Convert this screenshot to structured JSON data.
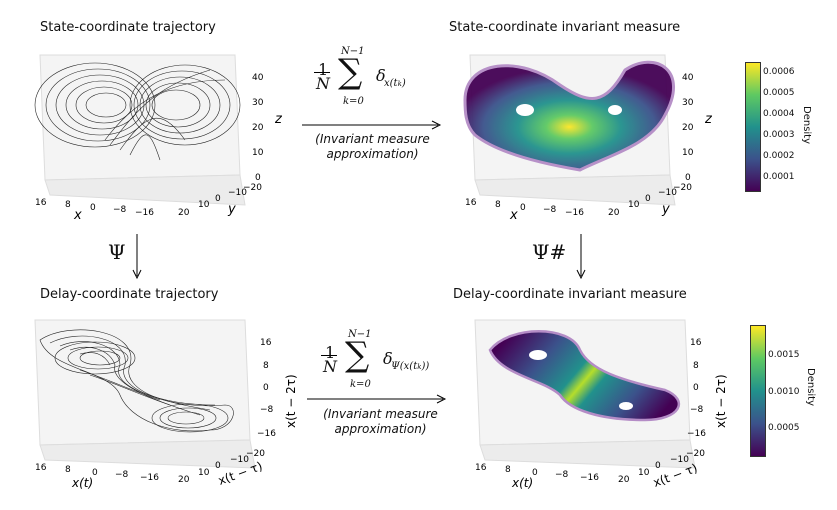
{
  "titles": {
    "top_left": "State-coordinate trajectory",
    "top_right": "State-coordinate invariant measure",
    "bottom_left": "Delay-coordinate trajectory",
    "bottom_right": "Delay-coordinate invariant measure"
  },
  "top_formula": {
    "frac_num": "1",
    "frac_den": "N",
    "sum_upper": "N−1",
    "sum_lower": "k=0",
    "term": "δ",
    "term_sub": "x(t",
    "term_sub2": "k",
    "term_sub3": ")",
    "note_line1": "(Invariant measure",
    "note_line2": "approximation)"
  },
  "bottom_formula": {
    "frac_num": "1",
    "frac_den": "N",
    "sum_upper": "N−1",
    "sum_lower": "k=0",
    "term": "δ",
    "term_sub": "Ψ(x(t",
    "term_sub2": "k",
    "term_sub3": "))",
    "note_line1": "(Invariant measure",
    "note_line2": "approximation)"
  },
  "maps": {
    "left": "Ψ",
    "right": "Ψ#"
  },
  "axes_state": {
    "z_label": "z",
    "z_ticks": [
      "40",
      "30",
      "20",
      "10",
      "0"
    ],
    "x_label": "x",
    "x_ticks": [
      "16",
      "8",
      "0",
      "−8",
      "−16"
    ],
    "y_label": "y",
    "y_ticks": [
      "20",
      "10",
      "0",
      "−10",
      "−20"
    ]
  },
  "axes_delay": {
    "z_label": "x(t − 2τ)",
    "z_ticks": [
      "16",
      "8",
      "0",
      "−8",
      "−16"
    ],
    "x_label": "x(t)",
    "x_ticks": [
      "16",
      "8",
      "0",
      "−8",
      "−16"
    ],
    "y_label": "x(t − τ)",
    "y_ticks": [
      "20",
      "10",
      "0",
      "−10",
      "−20"
    ]
  },
  "colorbar_top": {
    "title": "Density",
    "ticks": [
      "0.0006",
      "0.0005",
      "0.0004",
      "0.0003",
      "0.0002",
      "0.0001"
    ]
  },
  "colorbar_bottom": {
    "title": "Density",
    "ticks": [
      "0.0015",
      "0.0010",
      "0.0005"
    ]
  },
  "colors": {
    "viridis_dark": "#440154",
    "viridis_mid": "#21918c",
    "viridis_bright": "#fde725"
  }
}
